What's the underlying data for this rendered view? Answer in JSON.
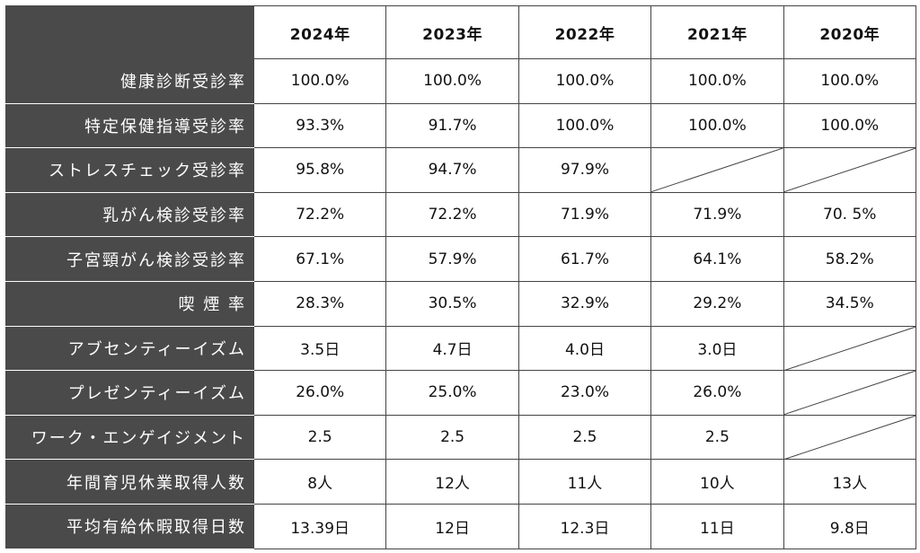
{
  "years": [
    "2024年",
    "2023年",
    "2022年",
    "2021年",
    "2020年"
  ],
  "rows": [
    {
      "label": "健康診断受診率",
      "values": [
        "100.0%",
        "100.0%",
        "100.0%",
        "100.0%",
        "100.0%"
      ]
    },
    {
      "label": "特定保健指導受診率",
      "values": [
        "93.3%",
        "91.7%",
        "100.0%",
        "100.0%",
        "100.0%"
      ]
    },
    {
      "label": "ストレスチェック受診率",
      "values": [
        "95.8%",
        "94.7%",
        "97.9%",
        null,
        null
      ]
    },
    {
      "label": "乳がん検診受診率",
      "values": [
        "72.2%",
        "72.2%",
        "71.9%",
        "71.9%",
        "70. 5%"
      ]
    },
    {
      "label": "子宮頸がん検診受診率",
      "values": [
        "67.1%",
        "57.9%",
        "61.7%",
        "64.1%",
        "58.2%"
      ]
    },
    {
      "label": "喫 煙 率",
      "values": [
        "28.3%",
        "30.5%",
        "32.9%",
        "29.2%",
        "34.5%"
      ]
    },
    {
      "label": "アブセンティーイズム",
      "values": [
        "3.5日",
        "4.7日",
        "4.0日",
        "3.0日",
        null
      ]
    },
    {
      "label": "プレゼンティーイズム",
      "values": [
        "26.0%",
        "25.0%",
        "23.0%",
        "26.0%",
        null
      ]
    },
    {
      "label": "ワーク・エンゲイジメント",
      "values": [
        "2.5",
        "2.5",
        "2.5",
        "2.5",
        null
      ]
    },
    {
      "label": "年間育児休業取得人数",
      "values": [
        "8人",
        "12人",
        "11人",
        "10人",
        "13人"
      ]
    },
    {
      "label": "平均有給休暇取得日数",
      "values": [
        "13.39日",
        "12日",
        "12.3日",
        "11日",
        "9.8日"
      ]
    }
  ]
}
